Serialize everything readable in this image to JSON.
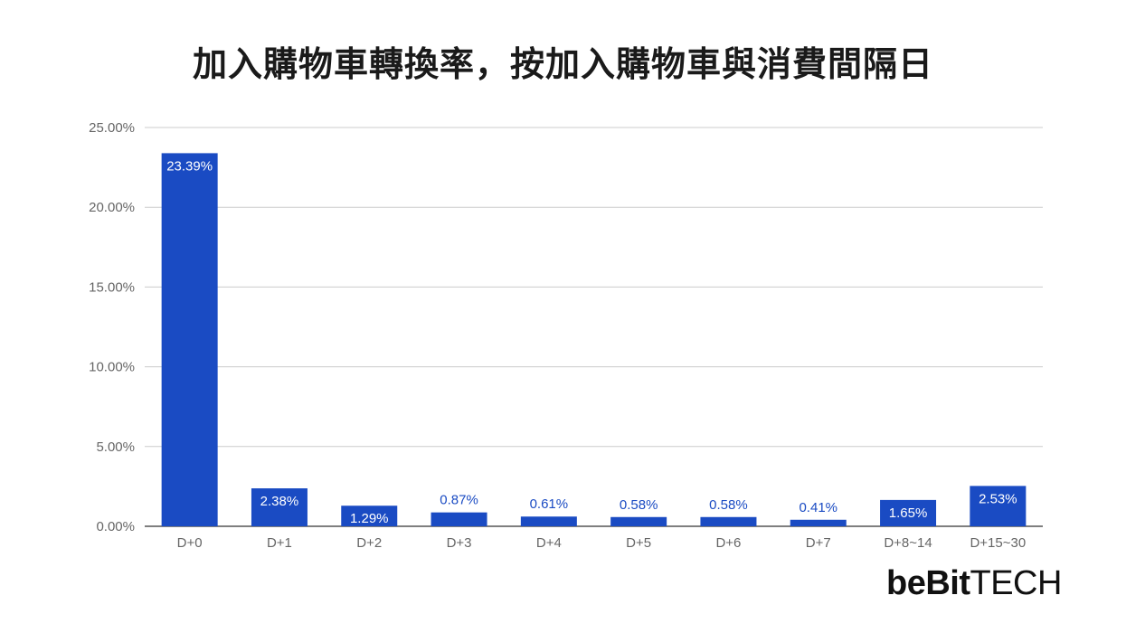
{
  "title": "加入購物車轉換率，按加入購物車與消費間隔日",
  "logo": {
    "part1": "beBit",
    "part2": "TECH"
  },
  "colors": {
    "bar": "#1a4bc3",
    "grid": "#cccccc",
    "axis_text": "#666666",
    "label_outside": "#1a4bc3",
    "label_inside": "#ffffff"
  },
  "chart_data": {
    "type": "bar",
    "title": "加入購物車轉換率，按加入購物車與消費間隔日",
    "xlabel": "",
    "ylabel": "",
    "categories": [
      "D+0",
      "D+1",
      "D+2",
      "D+3",
      "D+4",
      "D+5",
      "D+6",
      "D+7",
      "D+8~14",
      "D+15~30"
    ],
    "values": [
      23.39,
      2.38,
      1.29,
      0.87,
      0.61,
      0.58,
      0.58,
      0.41,
      1.65,
      2.53
    ],
    "data_labels": [
      "23.39%",
      "2.38%",
      "1.29%",
      "0.87%",
      "0.61%",
      "0.58%",
      "0.58%",
      "0.41%",
      "1.65%",
      "2.53%"
    ],
    "label_inside": [
      true,
      true,
      true,
      false,
      false,
      false,
      false,
      false,
      true,
      true
    ],
    "ylim": [
      0,
      25
    ],
    "yticks": [
      0,
      5,
      10,
      15,
      20,
      25
    ],
    "ytick_labels": [
      "0.00%",
      "5.00%",
      "10.00%",
      "15.00%",
      "20.00%",
      "25.00%"
    ],
    "grid": true,
    "legend": "none"
  }
}
